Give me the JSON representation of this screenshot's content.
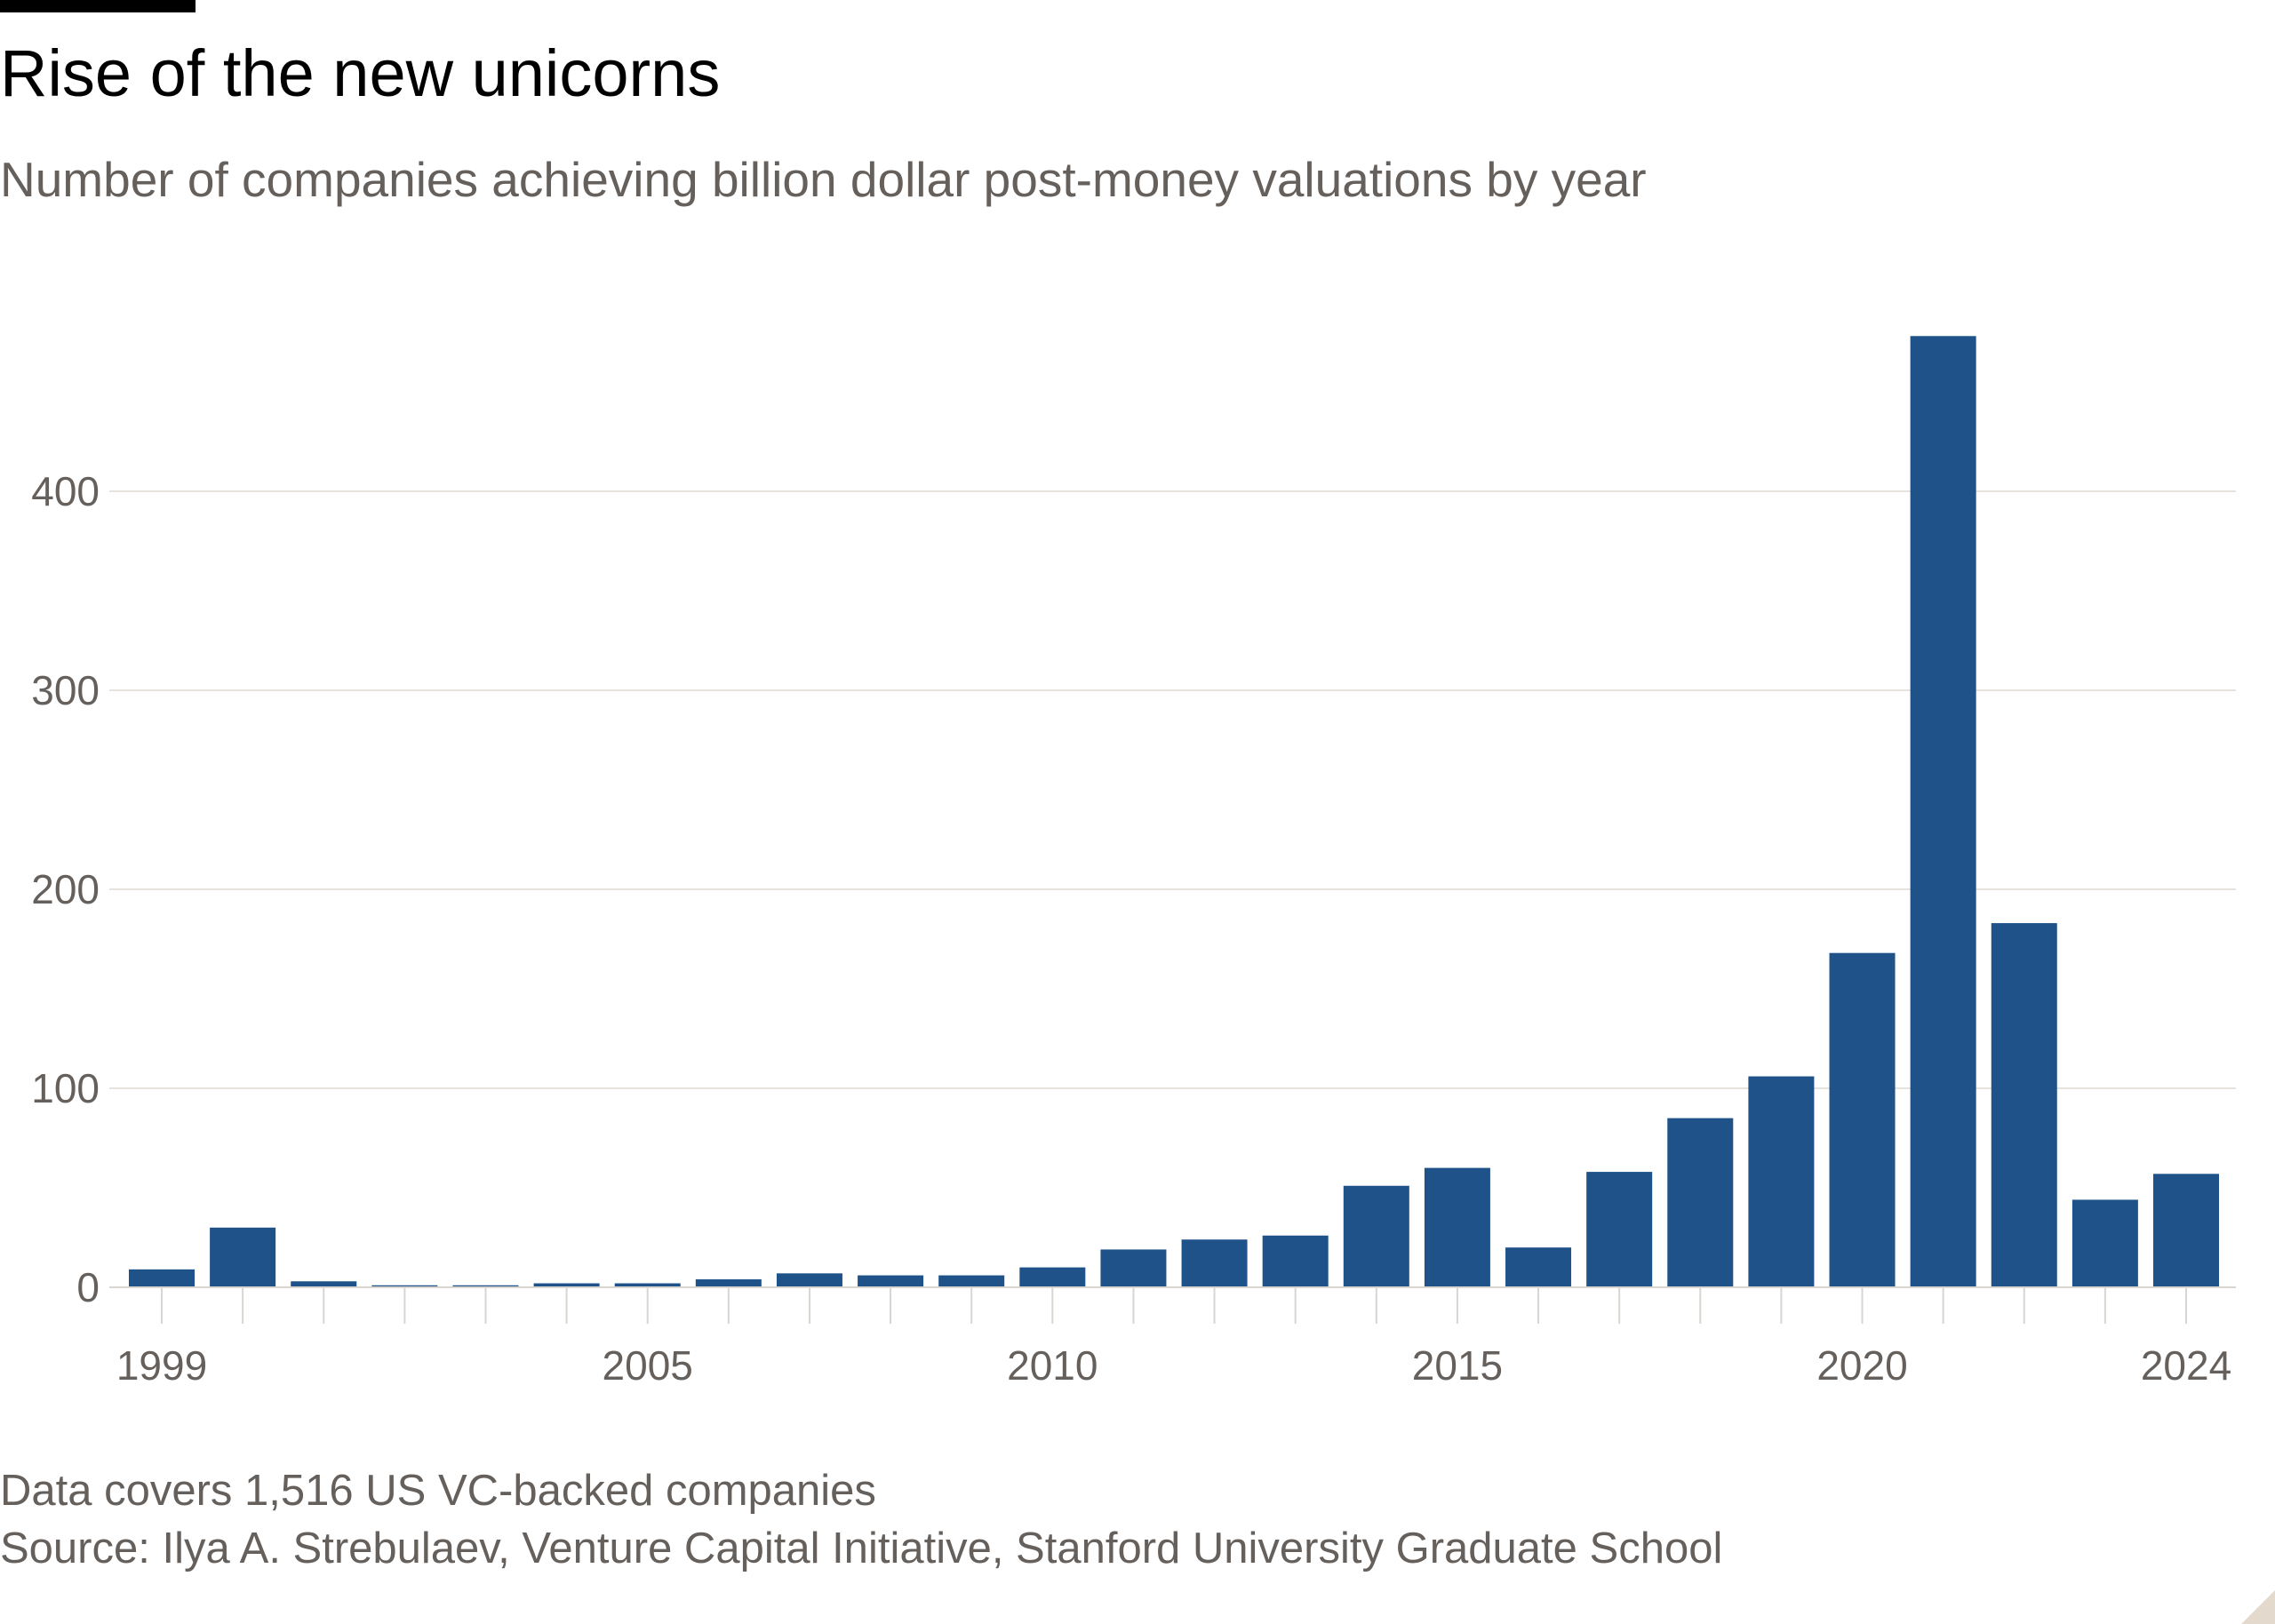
{
  "title": "Rise of the new unicorns",
  "subtitle": "Number of companies achieving billion dollar post-money valuations by year",
  "footer": {
    "note": "Data covers 1,516 US VC-backed companies",
    "source": "Source: Ilya A. Strebulaev, Venture Capital Initiative, Stanford University Graduate School"
  },
  "chart_data": {
    "type": "bar",
    "title": "Rise of the new unicorns",
    "subtitle": "Number of companies achieving billion dollar post-money valuations by year",
    "xlabel": "",
    "ylabel": "",
    "categories": [
      1999,
      2000,
      2001,
      2002,
      2003,
      2004,
      2005,
      2006,
      2007,
      2008,
      2009,
      2010,
      2011,
      2012,
      2013,
      2014,
      2015,
      2016,
      2017,
      2018,
      2019,
      2020,
      2021,
      2022,
      2023,
      2024
    ],
    "values": [
      9,
      30,
      3,
      1,
      1,
      2,
      2,
      4,
      7,
      6,
      6,
      10,
      19,
      24,
      26,
      51,
      60,
      20,
      58,
      85,
      106,
      168,
      478,
      183,
      44,
      57
    ],
    "x_tick_labels": [
      "1999",
      "2005",
      "2010",
      "2015",
      "2020",
      "2024"
    ],
    "y_ticks": [
      0,
      100,
      200,
      300,
      400
    ],
    "y_tick_labels": [
      "0",
      "100",
      "200",
      "300",
      "400"
    ],
    "ylim": [
      0,
      480
    ],
    "grid": true,
    "bar_color": "#1f5289",
    "grid_color": "#e6e3df",
    "text_color": "#66605c"
  }
}
